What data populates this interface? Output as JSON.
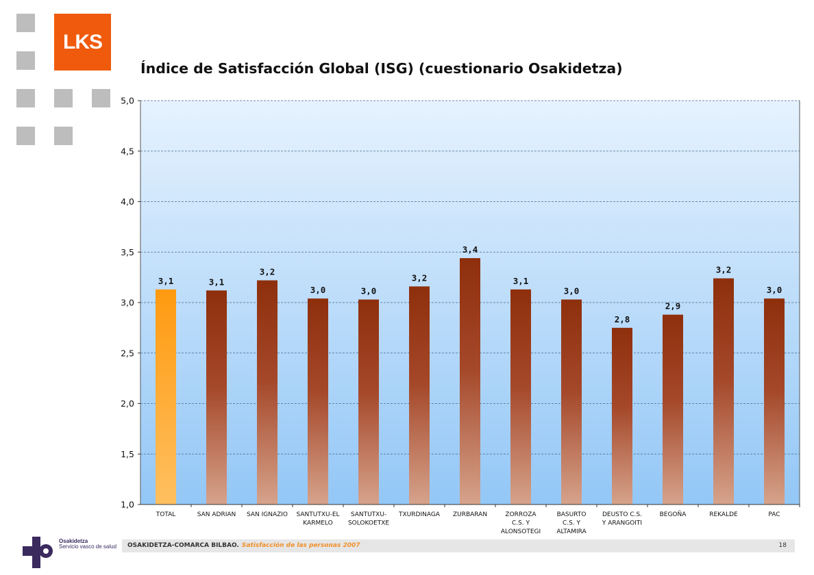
{
  "header": {
    "logo_text": "LKS",
    "title": "Índice de Satisfacción Global (ISG) (cuestionario Osakidetza)"
  },
  "footer": {
    "org": "OSAKIDETZA-COMARCA BILBAO.",
    "subtitle": "Satisfacción de las personas 2007",
    "page": "18",
    "logo_name": "Osakidetza",
    "logo_tagline": "Servicio vasco de salud"
  },
  "colors": {
    "total_bar": "#ff9a10",
    "bar_top": "#8e2f0c",
    "bar_bottom": "#d6a38c",
    "plot_top": "#e6f2fe",
    "plot_bottom": "#93c7f6",
    "brand_orange": "#f05a0c"
  },
  "chart_data": {
    "type": "bar",
    "categories": [
      [
        "TOTAL"
      ],
      [
        "SAN ADRIAN"
      ],
      [
        "SAN IGNAZIO"
      ],
      [
        "SANTUTXU-EL",
        "KARMELO"
      ],
      [
        "SANTUTXU-",
        "SOLOKOETXE"
      ],
      [
        "TXURDINAGA"
      ],
      [
        "ZURBARAN"
      ],
      [
        "ZORROZA",
        "C.S. Y",
        "ALONSOTEGI"
      ],
      [
        "BASURTO",
        "C.S. Y",
        "ALTAMIRA"
      ],
      [
        "DEUSTO C.S.",
        "Y ARANGOITI"
      ],
      [
        "BEGOÑA"
      ],
      [
        "REKALDE"
      ],
      [
        "PAC"
      ]
    ],
    "values": [
      3.13,
      3.12,
      3.22,
      3.04,
      3.03,
      3.16,
      3.44,
      3.13,
      3.03,
      2.75,
      2.88,
      3.24,
      3.04
    ],
    "data_labels": [
      "3,1",
      "3,1",
      "3,2",
      "3,0",
      "3,0",
      "3,2",
      "3,4",
      "3,1",
      "3,0",
      "2,8",
      "2,9",
      "3,2",
      "3,0"
    ],
    "ylim": [
      1.0,
      5.0
    ],
    "yticks": [
      1.0,
      1.5,
      2.0,
      2.5,
      3.0,
      3.5,
      4.0,
      4.5,
      5.0
    ],
    "ytick_labels": [
      "1,0",
      "1,5",
      "2,0",
      "2,5",
      "3,0",
      "3,5",
      "4,0",
      "4,5",
      "5,0"
    ],
    "grid": true,
    "legend": "none"
  }
}
